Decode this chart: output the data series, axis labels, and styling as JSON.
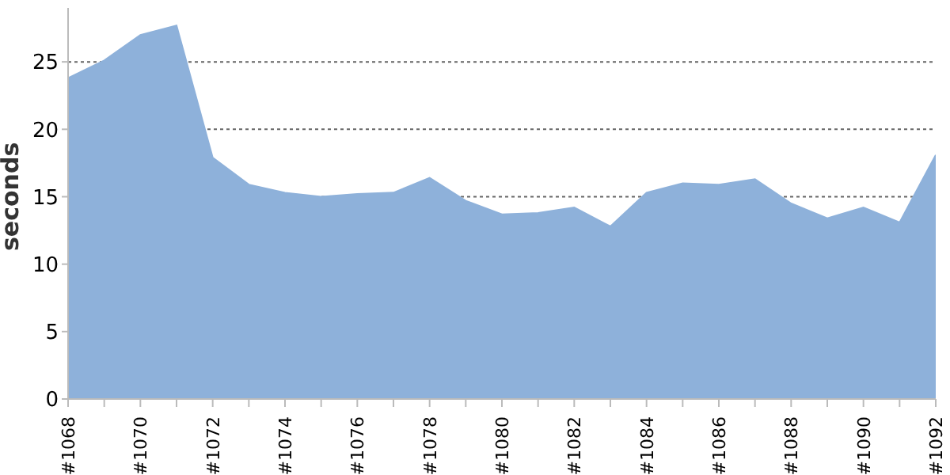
{
  "chart_data": {
    "type": "area",
    "ylabel": "seconds",
    "categories": [
      "#1068",
      null,
      "#1070",
      null,
      "#1072",
      null,
      "#1074",
      null,
      "#1076",
      null,
      "#1078",
      null,
      "#1080",
      null,
      "#1082",
      null,
      "#1084",
      null,
      "#1086",
      null,
      "#1088",
      null,
      "#1090",
      null,
      "#1092"
    ],
    "series": [
      {
        "color": "#8eb1da",
        "values": [
          23.8,
          25.1,
          27.0,
          27.7,
          17.9,
          15.9,
          15.3,
          15.0,
          15.2,
          15.3,
          16.4,
          14.7,
          13.7,
          13.8,
          14.2,
          12.8,
          15.3,
          16.0,
          15.9,
          16.3,
          14.5,
          13.4,
          14.2,
          13.1,
          18.1
        ]
      }
    ],
    "ylim": [
      0,
      29
    ],
    "yticks": [
      0,
      5,
      10,
      15,
      20,
      25
    ],
    "grid": "y",
    "legend": false
  }
}
